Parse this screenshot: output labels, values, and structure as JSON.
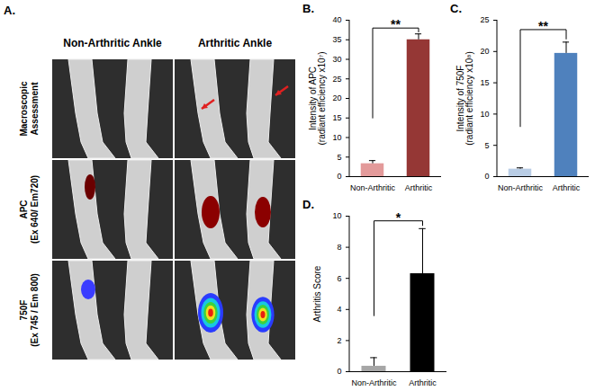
{
  "panel_a": {
    "title": "A.",
    "columns": [
      "Non-Arthritic Ankle",
      "Arthritic Ankle"
    ],
    "rows": [
      [
        "Macroscopic",
        "Assessment"
      ],
      [
        "APC",
        "(Ex 640/ Em720)"
      ],
      [
        "750F",
        "(Ex 745 / Em 800)"
      ]
    ]
  },
  "chart_data": [
    {
      "type": "bar",
      "title": "B.",
      "categories": [
        "Non-Arthritic",
        "Arthritic"
      ],
      "values": [
        3.3,
        35
      ],
      "errors": [
        0.8,
        1.5
      ],
      "colors": [
        "#e39a9a",
        "#953735"
      ],
      "ylabel": [
        "Intensity of APC",
        "(radiant efficiency x10⁷)"
      ],
      "ylim": [
        0,
        40
      ],
      "yticks": [
        0,
        5,
        10,
        15,
        20,
        25,
        30,
        35,
        40
      ],
      "annotations": [
        {
          "text": "**",
          "y": 38,
          "ends": [
            15,
            37
          ]
        }
      ]
    },
    {
      "type": "bar",
      "title": "C.",
      "categories": [
        "Non-Arthritic",
        "Arthritic"
      ],
      "values": [
        1.2,
        19.7
      ],
      "errors": [
        0.2,
        1.8
      ],
      "colors": [
        "#b9cde5",
        "#4f81bd"
      ],
      "ylabel": [
        "Intensity of 750F",
        "(radiant efficiency x10⁸)"
      ],
      "ylim": [
        0,
        25
      ],
      "yticks": [
        0,
        5,
        10,
        15,
        20,
        25
      ],
      "annotations": [
        {
          "text": "**",
          "y": 23.5,
          "ends": [
            8,
            22
          ]
        }
      ]
    },
    {
      "type": "bar",
      "title": "D.",
      "categories": [
        "Non-Arthritic",
        "Arthritic"
      ],
      "values": [
        0.35,
        6.3
      ],
      "errors": [
        0.55,
        2.9
      ],
      "colors": [
        "#a6a6a6",
        "#000000"
      ],
      "ylabel": [
        "Arthritis Score"
      ],
      "ylim": [
        0,
        10
      ],
      "yticks": [
        0,
        2,
        4,
        6,
        8,
        10
      ],
      "annotations": [
        {
          "text": "*",
          "y": 9.7,
          "ends": [
            3.6,
            9.4
          ]
        }
      ]
    }
  ]
}
